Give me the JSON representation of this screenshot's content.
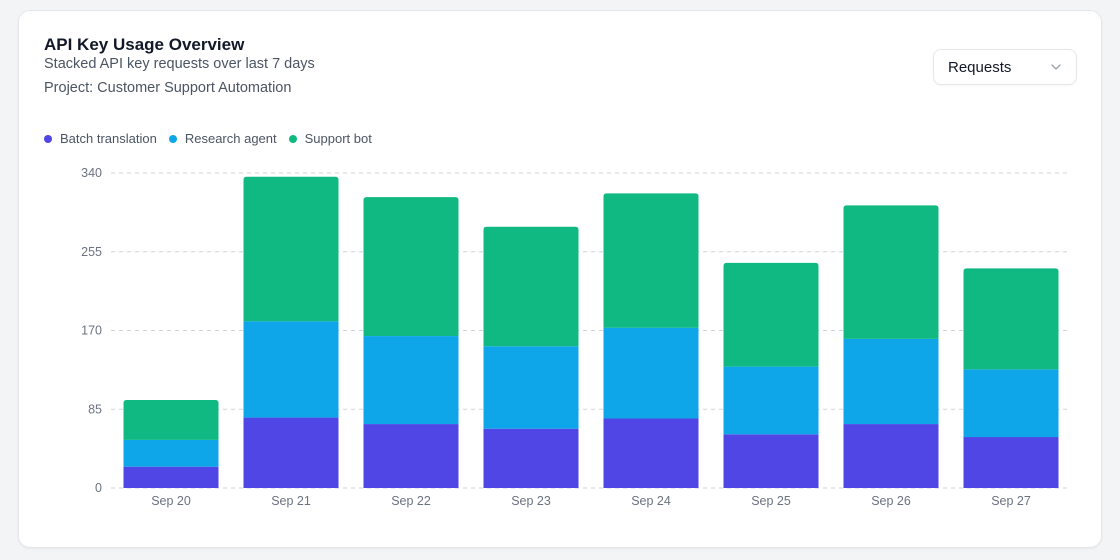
{
  "header": {
    "title": "API Key Usage Overview",
    "subtitle": "Stacked API key requests over last 7 days",
    "project": "Project: Customer Support Automation"
  },
  "metric_select": {
    "selected": "Requests"
  },
  "colors": {
    "batch_translation": "#4f46e5",
    "research_agent": "#0ea5e9",
    "support_bot": "#10b981",
    "grid": "#d1d5db",
    "tick_label": "#6b7280"
  },
  "chart_data": {
    "type": "bar",
    "stacked": true,
    "categories": [
      "Sep 20",
      "Sep 21",
      "Sep 22",
      "Sep 23",
      "Sep 24",
      "Sep 25",
      "Sep 26",
      "Sep 27"
    ],
    "series": [
      {
        "name": "Batch translation",
        "color": "#4f46e5",
        "values": [
          23,
          76,
          69,
          64,
          75,
          58,
          69,
          55
        ]
      },
      {
        "name": "Research agent",
        "color": "#0ea5e9",
        "values": [
          29,
          104,
          95,
          89,
          98,
          73,
          92,
          73
        ]
      },
      {
        "name": "Support bot",
        "color": "#10b981",
        "values": [
          43,
          156,
          150,
          129,
          145,
          112,
          144,
          109
        ]
      }
    ],
    "y_ticks": [
      0,
      85,
      170,
      255,
      340
    ],
    "ylim": [
      0,
      340
    ],
    "grid": true,
    "legend_position": "top-left"
  }
}
